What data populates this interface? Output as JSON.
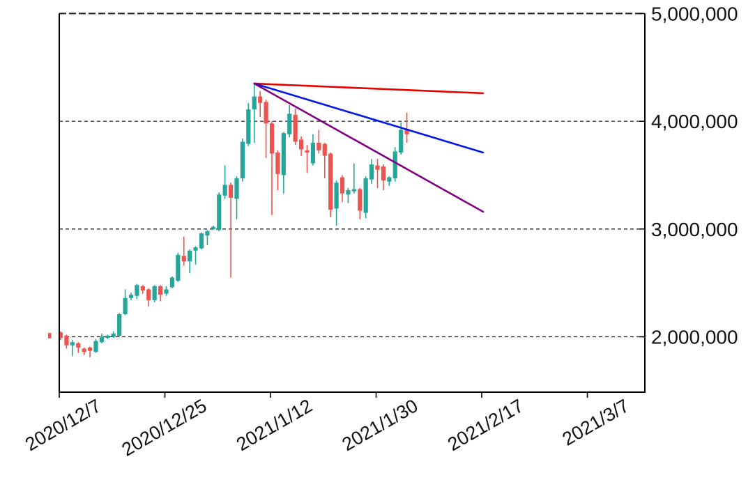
{
  "chart_data": {
    "type": "candlestick",
    "title": "",
    "xlabel": "",
    "ylabel": "",
    "grid": true,
    "legend": "none",
    "y_axis": {
      "side": "right",
      "range": [
        1490000,
        5000000
      ],
      "ticks": [
        {
          "value": 5000000,
          "label": "5,000,000"
        },
        {
          "value": 4000000,
          "label": "4,000,000"
        },
        {
          "value": 3000000,
          "label": "3,000,000"
        },
        {
          "value": 2000000,
          "label": "2,000,000"
        }
      ]
    },
    "x_axis": {
      "tick_rotation_deg": 30,
      "ticks": [
        {
          "date": "2020/12/7",
          "label": "2020/12/7"
        },
        {
          "date": "2020/12/25",
          "label": "2020/12/25"
        },
        {
          "date": "2021/1/12",
          "label": "2021/1/12"
        },
        {
          "date": "2021/1/30",
          "label": "2021/1/30"
        },
        {
          "date": "2021/2/17",
          "label": "2021/2/17"
        },
        {
          "date": "2021/3/7",
          "label": "2021/3/7"
        }
      ]
    },
    "candle_columns": [
      "date",
      "open",
      "high",
      "low",
      "close"
    ],
    "candles": [
      [
        "2020/12/7",
        2040000,
        2050000,
        1970000,
        1990000
      ],
      [
        "2020/12/8",
        2010000,
        2020000,
        1890000,
        1920000
      ],
      [
        "2020/12/9",
        1920000,
        1970000,
        1820000,
        1950000
      ],
      [
        "2020/12/10",
        1940000,
        1950000,
        1850000,
        1900000
      ],
      [
        "2020/12/11",
        1890000,
        1900000,
        1830000,
        1860000
      ],
      [
        "2020/12/12",
        1900000,
        1910000,
        1810000,
        1870000
      ],
      [
        "2020/12/13",
        1860000,
        1980000,
        1850000,
        1960000
      ],
      [
        "2020/12/14",
        1950000,
        2030000,
        1940000,
        2000000
      ],
      [
        "2020/12/15",
        1990000,
        2020000,
        1980000,
        2010000
      ],
      [
        "2020/12/16",
        2000000,
        2050000,
        1990000,
        2030000
      ],
      [
        "2020/12/17",
        2010000,
        2220000,
        2000000,
        2210000
      ],
      [
        "2020/12/18",
        2210000,
        2440000,
        2200000,
        2360000
      ],
      [
        "2020/12/19",
        2360000,
        2410000,
        2340000,
        2390000
      ],
      [
        "2020/12/20",
        2380000,
        2490000,
        2350000,
        2480000
      ],
      [
        "2020/12/21",
        2470000,
        2480000,
        2400000,
        2430000
      ],
      [
        "2020/12/22",
        2440000,
        2450000,
        2280000,
        2340000
      ],
      [
        "2020/12/23",
        2340000,
        2480000,
        2320000,
        2470000
      ],
      [
        "2020/12/24",
        2470000,
        2480000,
        2330000,
        2390000
      ],
      [
        "2020/12/25",
        2400000,
        2470000,
        2380000,
        2440000
      ],
      [
        "2020/12/26",
        2460000,
        2560000,
        2450000,
        2550000
      ],
      [
        "2020/12/27",
        2520000,
        2780000,
        2510000,
        2760000
      ],
      [
        "2020/12/28",
        2750000,
        2930000,
        2660000,
        2700000
      ],
      [
        "2020/12/29",
        2700000,
        2810000,
        2590000,
        2800000
      ],
      [
        "2020/12/30",
        2800000,
        2840000,
        2670000,
        2830000
      ],
      [
        "2020/12/31",
        2820000,
        2970000,
        2810000,
        2960000
      ],
      [
        "2021/1/1",
        2940000,
        2990000,
        2850000,
        2980000
      ],
      [
        "2021/1/2",
        3000000,
        3030000,
        2990000,
        3020000
      ],
      [
        "2021/1/3",
        2990000,
        3340000,
        2980000,
        3320000
      ],
      [
        "2021/1/4",
        3310000,
        3590000,
        3280000,
        3410000
      ],
      [
        "2021/1/5",
        3410000,
        3430000,
        2550000,
        3290000
      ],
      [
        "2021/1/6",
        3280000,
        3490000,
        3090000,
        3470000
      ],
      [
        "2021/1/7",
        3470000,
        3840000,
        3440000,
        3810000
      ],
      [
        "2021/1/8",
        3790000,
        4170000,
        3770000,
        4110000
      ],
      [
        "2021/1/9",
        4110000,
        4350000,
        3800000,
        4230000
      ],
      [
        "2021/1/10",
        4230000,
        4280000,
        4040000,
        4170000
      ],
      [
        "2021/1/11",
        4180000,
        4200000,
        3660000,
        3980000
      ],
      [
        "2021/1/12",
        3980000,
        4000000,
        3130000,
        3700000
      ],
      [
        "2021/1/13",
        3710000,
        3730000,
        3360000,
        3510000
      ],
      [
        "2021/1/14",
        3500000,
        3900000,
        3330000,
        3890000
      ],
      [
        "2021/1/15",
        3880000,
        4150000,
        3850000,
        4070000
      ],
      [
        "2021/1/16",
        4060000,
        4120000,
        3780000,
        3810000
      ],
      [
        "2021/1/17",
        3830000,
        3860000,
        3680000,
        3740000
      ],
      [
        "2021/1/18",
        3730000,
        3780000,
        3520000,
        3710000
      ],
      [
        "2021/1/19",
        3610000,
        3880000,
        3590000,
        3800000
      ],
      [
        "2021/1/20",
        3800000,
        3920000,
        3700000,
        3730000
      ],
      [
        "2021/1/21",
        3790000,
        3800000,
        3470000,
        3680000
      ],
      [
        "2021/1/22",
        3700000,
        3710000,
        3110000,
        3180000
      ],
      [
        "2021/1/23",
        3190000,
        3450000,
        3030000,
        3430000
      ],
      [
        "2021/1/24",
        3480000,
        3500000,
        3250000,
        3330000
      ],
      [
        "2021/1/25",
        3320000,
        3380000,
        3240000,
        3360000
      ],
      [
        "2021/1/26",
        3350000,
        3610000,
        3330000,
        3370000
      ],
      [
        "2021/1/27",
        3370000,
        3380000,
        3090000,
        3170000
      ],
      [
        "2021/1/28",
        3150000,
        3490000,
        3100000,
        3470000
      ],
      [
        "2021/1/29",
        3460000,
        3650000,
        3420000,
        3600000
      ],
      [
        "2021/1/30",
        3590000,
        3650000,
        3380000,
        3550000
      ],
      [
        "2021/1/31",
        3580000,
        3600000,
        3360000,
        3450000
      ],
      [
        "2021/2/1",
        3440000,
        3490000,
        3400000,
        3480000
      ],
      [
        "2021/2/2",
        3470000,
        3760000,
        3440000,
        3720000
      ],
      [
        "2021/2/3",
        3710000,
        3990000,
        3690000,
        3920000
      ],
      [
        "2021/2/4",
        3930000,
        4080000,
        3800000,
        3880000
      ]
    ],
    "trendlines": [
      {
        "name": "fan-line-upper",
        "color": "#e80000",
        "from": {
          "date": "2021/1/9",
          "value": 4350000
        },
        "to": {
          "date": "2021/2/17",
          "value": 4260000
        }
      },
      {
        "name": "fan-line-middle",
        "color": "#0018e8",
        "from": {
          "date": "2021/1/9",
          "value": 4350000
        },
        "to": {
          "date": "2021/2/17",
          "value": 3710000
        }
      },
      {
        "name": "fan-line-lower",
        "color": "#800080",
        "from": {
          "date": "2021/1/9",
          "value": 4350000
        },
        "to": {
          "date": "2021/2/17",
          "value": 3160000
        }
      }
    ],
    "off_axis_fragment": {
      "value_top": 2035000,
      "value_bottom": 1985000
    },
    "colors": {
      "up": "#26a69a",
      "down": "#ef5350",
      "grid": "#1a1a1a",
      "axis": "#000000",
      "background": "#ffffff",
      "text": "#111111"
    }
  }
}
